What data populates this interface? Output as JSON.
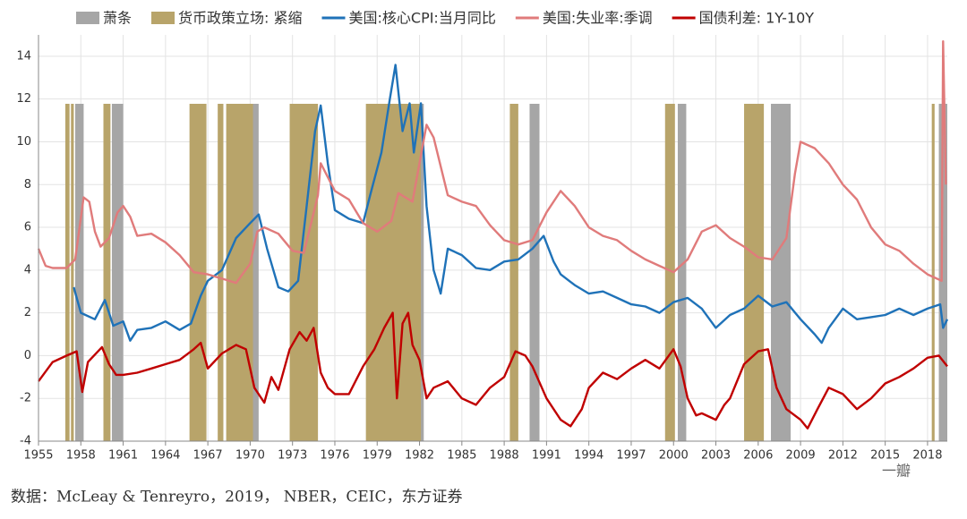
{
  "chart_data": {
    "type": "line",
    "xlim": [
      1955,
      2019.4
    ],
    "ylim": [
      -4,
      15
    ],
    "xticks": [
      1955,
      1958,
      1961,
      1964,
      1967,
      1970,
      1973,
      1976,
      1979,
      1982,
      1985,
      1988,
      1991,
      1994,
      1997,
      2000,
      2003,
      2006,
      2009,
      2012,
      2015,
      2018
    ],
    "yticks": [
      -4,
      -2,
      0,
      2,
      4,
      6,
      8,
      10,
      12,
      14
    ],
    "grid": true,
    "bands": [
      {
        "name": "萧条",
        "color": "#a6a6a6",
        "ranges": [
          [
            1957.6,
            1958.2
          ],
          [
            1960.2,
            1961.0
          ],
          [
            1969.8,
            1970.6
          ],
          [
            1973.8,
            1974.8
          ],
          [
            1981.1,
            1982.3
          ],
          [
            1989.8,
            1990.5
          ],
          [
            2000.3,
            2000.9
          ],
          [
            2006.9,
            2008.3
          ],
          [
            2018.8,
            2019.4
          ]
        ]
      },
      {
        "name": "货币政策立场: 紧缩",
        "color": "#b8a46a",
        "ranges": [
          [
            1956.9,
            1957.2
          ],
          [
            1957.3,
            1957.5
          ],
          [
            1959.6,
            1960.1
          ],
          [
            1965.7,
            1966.9
          ],
          [
            1967.7,
            1968.1
          ],
          [
            1968.3,
            1970.2
          ],
          [
            1972.8,
            1974.8
          ],
          [
            1978.2,
            1982.1
          ],
          [
            1988.4,
            1989.0
          ],
          [
            1999.4,
            2000.1
          ],
          [
            2005.0,
            2006.4
          ],
          [
            2018.3,
            2018.5
          ]
        ]
      }
    ],
    "series": [
      {
        "name": "美国:核心CPI:当月同比",
        "color": "#1f72b8",
        "x": [
          1957.5,
          1958,
          1959,
          1959.7,
          1960.3,
          1961,
          1961.5,
          1962,
          1963,
          1964,
          1965,
          1965.8,
          1966.5,
          1967,
          1968,
          1969,
          1970,
          1970.6,
          1971.2,
          1972,
          1972.7,
          1973.4,
          1974,
          1974.6,
          1975,
          1975.5,
          1976,
          1977,
          1978,
          1978.5,
          1979.3,
          1979.9,
          1980.3,
          1980.8,
          1981.3,
          1981.6,
          1982.1,
          1982.5,
          1983,
          1983.5,
          1984,
          1985,
          1986,
          1987,
          1988,
          1989,
          1990,
          1990.8,
          1991.5,
          1992,
          1993,
          1994,
          1995,
          1996,
          1997,
          1998,
          1999,
          2000,
          2001,
          2002,
          2003,
          2004,
          2005,
          2006,
          2007,
          2008,
          2009,
          2010,
          2010.5,
          2011,
          2012,
          2013,
          2014,
          2015,
          2016,
          2017,
          2018,
          2018.9,
          2019.1,
          2019.4
        ],
        "values": [
          3.2,
          2.0,
          1.7,
          2.6,
          1.4,
          1.6,
          0.7,
          1.2,
          1.3,
          1.6,
          1.2,
          1.5,
          2.8,
          3.5,
          4.0,
          5.5,
          6.2,
          6.6,
          5.0,
          3.2,
          3.0,
          3.5,
          7,
          10.5,
          11.7,
          9,
          6.8,
          6.4,
          6.2,
          7.5,
          9.5,
          12.0,
          13.6,
          10.5,
          11.8,
          9.5,
          11.8,
          7,
          4,
          2.9,
          5.0,
          4.7,
          4.1,
          4.0,
          4.4,
          4.5,
          5.0,
          5.6,
          4.4,
          3.8,
          3.3,
          2.9,
          3.0,
          2.7,
          2.4,
          2.3,
          2.0,
          2.5,
          2.7,
          2.2,
          1.3,
          1.9,
          2.2,
          2.8,
          2.3,
          2.5,
          1.7,
          1.0,
          0.6,
          1.3,
          2.2,
          1.7,
          1.8,
          1.9,
          2.2,
          1.9,
          2.2,
          2.4,
          1.3,
          1.7
        ]
      },
      {
        "name": "美国:失业率:季调",
        "color": "#e07b7b",
        "x": [
          1955,
          1955.5,
          1956,
          1957,
          1957.6,
          1958.2,
          1958.6,
          1959,
          1959.4,
          1960,
          1960.6,
          1961,
          1961.5,
          1962,
          1963,
          1964,
          1965,
          1966,
          1967,
          1968,
          1969,
          1970,
          1970.5,
          1971,
          1972,
          1973,
          1973.8,
          1974.8,
          1975,
          1976,
          1977,
          1978,
          1979,
          1980,
          1980.5,
          1981,
          1981.5,
          1982,
          1982.5,
          1983,
          1984,
          1985,
          1986,
          1987,
          1988,
          1989,
          1990,
          1991,
          1992,
          1993,
          1994,
          1995,
          1996,
          1997,
          1998,
          1999,
          2000,
          2001,
          2002,
          2003,
          2004,
          2005,
          2006,
          2007,
          2008,
          2008.6,
          2009,
          2010,
          2011,
          2012,
          2013,
          2014,
          2015,
          2016,
          2017,
          2018,
          2019,
          2019.1,
          2019.3
        ],
        "values": [
          5.0,
          4.2,
          4.1,
          4.1,
          4.5,
          7.4,
          7.2,
          5.8,
          5.1,
          5.5,
          6.7,
          7.0,
          6.5,
          5.6,
          5.7,
          5.3,
          4.7,
          3.9,
          3.8,
          3.6,
          3.4,
          4.3,
          5.8,
          6.0,
          5.7,
          4.9,
          4.8,
          7.5,
          9.0,
          7.7,
          7.3,
          6.2,
          5.8,
          6.3,
          7.6,
          7.4,
          7.2,
          9.0,
          10.8,
          10.2,
          7.5,
          7.2,
          7.0,
          6.1,
          5.4,
          5.2,
          5.4,
          6.7,
          7.7,
          7.0,
          6.0,
          5.6,
          5.4,
          4.9,
          4.5,
          4.2,
          3.9,
          4.5,
          5.8,
          6.1,
          5.5,
          5.1,
          4.6,
          4.5,
          5.5,
          8.5,
          10.0,
          9.7,
          9.0,
          8.0,
          7.3,
          6.0,
          5.2,
          4.9,
          4.3,
          3.8,
          3.5,
          14.7,
          8.0
        ]
      },
      {
        "name": "国债利差: 1Y-10Y",
        "color": "#c00000",
        "x": [
          1955,
          1956,
          1957,
          1957.7,
          1958.1,
          1958.5,
          1959.5,
          1960,
          1960.5,
          1961,
          1962,
          1963,
          1964,
          1965,
          1966,
          1966.5,
          1967,
          1968,
          1969,
          1969.7,
          1970.3,
          1971,
          1971.5,
          1972,
          1972.8,
          1973.5,
          1974,
          1974.5,
          1975,
          1975.5,
          1976,
          1977,
          1978,
          1978.8,
          1979.5,
          1980.1,
          1980.4,
          1980.8,
          1981.2,
          1981.5,
          1982,
          1982.5,
          1983,
          1984,
          1985,
          1986,
          1987,
          1988,
          1988.8,
          1989.5,
          1990,
          1991,
          1992,
          1992.7,
          1993.5,
          1994,
          1995,
          1996,
          1997,
          1998,
          1999,
          2000,
          2000.5,
          2001,
          2001.6,
          2002,
          2003,
          2003.6,
          2004,
          2005,
          2006,
          2006.7,
          2007.3,
          2008,
          2009,
          2009.5,
          2010.2,
          2011,
          2012,
          2013,
          2014,
          2015,
          2016,
          2017,
          2018,
          2018.8,
          2019.4
        ],
        "values": [
          -1.2,
          -0.3,
          0,
          0.2,
          -1.7,
          -0.3,
          0.4,
          -0.4,
          -0.9,
          -0.9,
          -0.8,
          -0.6,
          -0.4,
          -0.2,
          0.3,
          0.6,
          -0.6,
          0.1,
          0.5,
          0.3,
          -1.5,
          -2.2,
          -1.0,
          -1.6,
          0.3,
          1.1,
          0.7,
          1.3,
          -0.8,
          -1.5,
          -1.8,
          -1.8,
          -0.5,
          0.3,
          1.3,
          2.0,
          -2.0,
          1.5,
          2.0,
          0.5,
          -0.2,
          -2.0,
          -1.5,
          -1.2,
          -2.0,
          -2.3,
          -1.5,
          -1.0,
          0.2,
          0,
          -0.5,
          -2.0,
          -3.0,
          -3.3,
          -2.5,
          -1.5,
          -0.8,
          -1.1,
          -0.6,
          -0.2,
          -0.6,
          0.3,
          -0.5,
          -2.0,
          -2.8,
          -2.7,
          -3.0,
          -2.3,
          -2.0,
          -0.4,
          0.2,
          0.3,
          -1.5,
          -2.5,
          -3.0,
          -3.4,
          -2.5,
          -1.5,
          -1.8,
          -2.5,
          -2.0,
          -1.3,
          -1.0,
          -0.6,
          -0.1,
          0,
          -0.5
        ]
      }
    ],
    "source": "数据：McLeay & Tenreyro，2019， NBER，CEIC，东方证券",
    "watermark": "一瓣"
  }
}
